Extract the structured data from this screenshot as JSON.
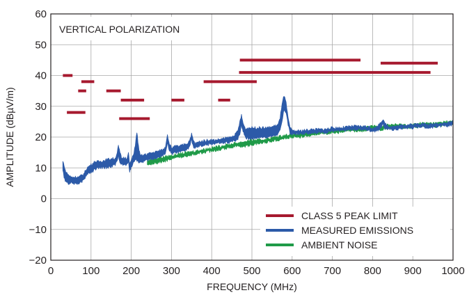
{
  "chart_data": {
    "type": "line",
    "annotation": "VERTICAL POLARIZATION",
    "xlabel": "FREQUENCY (MHz)",
    "ylabel": "AMPLITUDE (dBµV/m)",
    "xlim": [
      0,
      1000
    ],
    "ylim": [
      -20,
      60
    ],
    "x_ticks": [
      0,
      100,
      200,
      300,
      400,
      500,
      600,
      700,
      800,
      900,
      1000
    ],
    "y_ticks": [
      -20,
      -10,
      0,
      10,
      20,
      30,
      40,
      50,
      60
    ],
    "grid": true,
    "legend_position": "bottom-right",
    "series": [
      {
        "name": "CLASS 5 PEAK LIMIT",
        "color": "#a6192e",
        "style": "segments",
        "segments": [
          {
            "x": [
              30,
              54
            ],
            "y": 40
          },
          {
            "x": [
              40,
              86
            ],
            "y": 28
          },
          {
            "x": [
              68,
              88
            ],
            "y": 35
          },
          {
            "x": [
              76,
              108
            ],
            "y": 38
          },
          {
            "x": [
              138,
              174
            ],
            "y": 35
          },
          {
            "x": [
              174,
              232
            ],
            "y": 32
          },
          {
            "x": [
              170,
              246
            ],
            "y": 26
          },
          {
            "x": [
              300,
              332
            ],
            "y": 32
          },
          {
            "x": [
              380,
              512
            ],
            "y": 38
          },
          {
            "x": [
              416,
              446
            ],
            "y": 32
          },
          {
            "x": [
              470,
              770
            ],
            "y": 45
          },
          {
            "x": [
              468,
              944
            ],
            "y": 41
          },
          {
            "x": [
              820,
              962
            ],
            "y": 44
          }
        ]
      },
      {
        "name": "MEASURED EMISSIONS",
        "color": "#2c5aa8",
        "style": "band",
        "x": [
          30,
          33,
          36,
          42,
          50,
          60,
          70,
          76,
          82,
          90,
          100,
          110,
          120,
          135,
          150,
          160,
          165,
          168,
          172,
          176,
          185,
          190,
          193,
          196,
          200,
          205,
          210,
          214,
          218,
          222,
          228,
          240,
          255,
          270,
          280,
          285,
          290,
          294,
          300,
          310,
          320,
          330,
          340,
          345,
          350,
          354,
          358,
          362,
          370,
          390,
          410,
          430,
          450,
          460,
          465,
          470,
          474,
          478,
          484,
          490,
          500,
          520,
          540,
          555,
          565,
          570,
          575,
          580,
          585,
          590,
          595,
          600,
          620,
          650,
          680,
          700,
          720,
          750,
          780,
          800,
          810,
          815,
          820,
          825,
          830,
          840,
          860,
          880,
          900,
          920,
          940,
          960,
          980,
          1000
        ],
        "lo": [
          9,
          7,
          6,
          5,
          5,
          5,
          5,
          5.5,
          6,
          8,
          8.5,
          9.5,
          10,
          10,
          10.5,
          11,
          12,
          14,
          12,
          11,
          11,
          11,
          12,
          9,
          10,
          11.5,
          13,
          12.5,
          12,
          11.5,
          12,
          12.5,
          13,
          13.5,
          14,
          15,
          18,
          16,
          14.5,
          15,
          15,
          15.5,
          16,
          17,
          19,
          17,
          16.5,
          16.5,
          17,
          17.5,
          18,
          18,
          18.5,
          19,
          19.5,
          21,
          24,
          22,
          20,
          19.5,
          19.5,
          20,
          20,
          20.5,
          21,
          22,
          25,
          29,
          28,
          24,
          21,
          21,
          21,
          21.5,
          21.5,
          22,
          22,
          22.5,
          22.5,
          22,
          22,
          22.5,
          23,
          24,
          23,
          22.5,
          22.5,
          23,
          23,
          23.5,
          23,
          23.5,
          23.5,
          24
        ],
        "hi": [
          12,
          11,
          9,
          8,
          7,
          7,
          7,
          7.5,
          8,
          10,
          11,
          12,
          12,
          12.5,
          13,
          13,
          15,
          17,
          15,
          13,
          13.5,
          13,
          15,
          11,
          12.5,
          14,
          17.5,
          21.5,
          17,
          14,
          14,
          14.5,
          15,
          15.5,
          16,
          17,
          21,
          18,
          16.5,
          17,
          17,
          17.5,
          18,
          19,
          21,
          19,
          18,
          18,
          18.5,
          19,
          19,
          19.5,
          20,
          21,
          22,
          25,
          27,
          24.5,
          22.5,
          23,
          23,
          23,
          23,
          23.5,
          24,
          26,
          31,
          33.5,
          31,
          26,
          23,
          22,
          22,
          22.5,
          22.5,
          23,
          23,
          23.5,
          23.5,
          23,
          23,
          24,
          25,
          25.5,
          24.5,
          23.5,
          23.5,
          24,
          24,
          24.5,
          24,
          24.5,
          24.5,
          25
        ]
      },
      {
        "name": "AMBIENT NOISE",
        "color": "#1f9a48",
        "style": "band",
        "x": [
          240,
          260,
          280,
          300,
          320,
          340,
          360,
          380,
          400,
          420,
          440,
          460,
          480,
          500,
          520,
          540,
          560,
          580,
          600,
          620,
          640,
          660,
          680,
          700,
          720,
          740,
          760,
          780,
          800,
          820,
          840,
          860,
          880,
          900,
          920,
          940,
          960,
          980,
          1000
        ],
        "lo": [
          11,
          11.5,
          12,
          13,
          13.5,
          14,
          14.5,
          15,
          15.5,
          16,
          16.5,
          17,
          17,
          17.5,
          18,
          18.5,
          19,
          19.5,
          20,
          20,
          20.5,
          21,
          21,
          21.5,
          21.5,
          22,
          22,
          22,
          22.5,
          22.5,
          23,
          23,
          23,
          23,
          23.5,
          23.5,
          23.5,
          24,
          24
        ],
        "hi": [
          12.5,
          13,
          13.5,
          14,
          14.5,
          15,
          15.5,
          16,
          16.5,
          17,
          17.5,
          18,
          18.5,
          19,
          19,
          19.5,
          20,
          20.5,
          21,
          21,
          21.5,
          22,
          22,
          22.5,
          22.5,
          23,
          23,
          23,
          23.5,
          23.5,
          24,
          24,
          24,
          24,
          24.5,
          24.5,
          24.5,
          25,
          25
        ]
      }
    ]
  }
}
